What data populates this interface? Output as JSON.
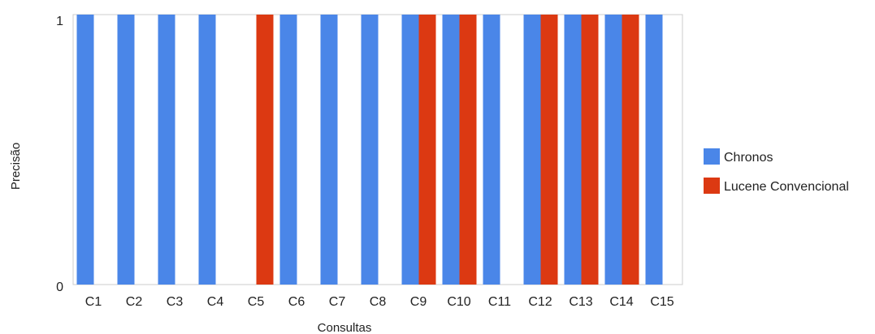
{
  "chart_data": {
    "type": "bar",
    "title": "",
    "xlabel": "Consultas",
    "ylabel": "Precisão",
    "categories": [
      "C1",
      "C2",
      "C3",
      "C4",
      "C5",
      "C6",
      "C7",
      "C8",
      "C9",
      "C10",
      "C11",
      "C12",
      "C13",
      "C14",
      "C15"
    ],
    "series": [
      {
        "name": "Chronos",
        "color": "#4a86e8",
        "values": [
          1,
          1,
          1,
          1,
          0,
          1,
          1,
          1,
          1,
          1,
          1,
          1,
          1,
          1,
          1
        ]
      },
      {
        "name": "Lucene Convencional",
        "color": "#dc3912",
        "values": [
          0,
          0,
          0,
          0,
          1,
          0,
          0,
          0,
          1,
          1,
          0,
          1,
          1,
          1,
          0
        ]
      }
    ],
    "ylim": [
      0,
      1
    ],
    "yticks": [
      "0",
      "1"
    ],
    "grid": false,
    "legend_position": "right"
  }
}
